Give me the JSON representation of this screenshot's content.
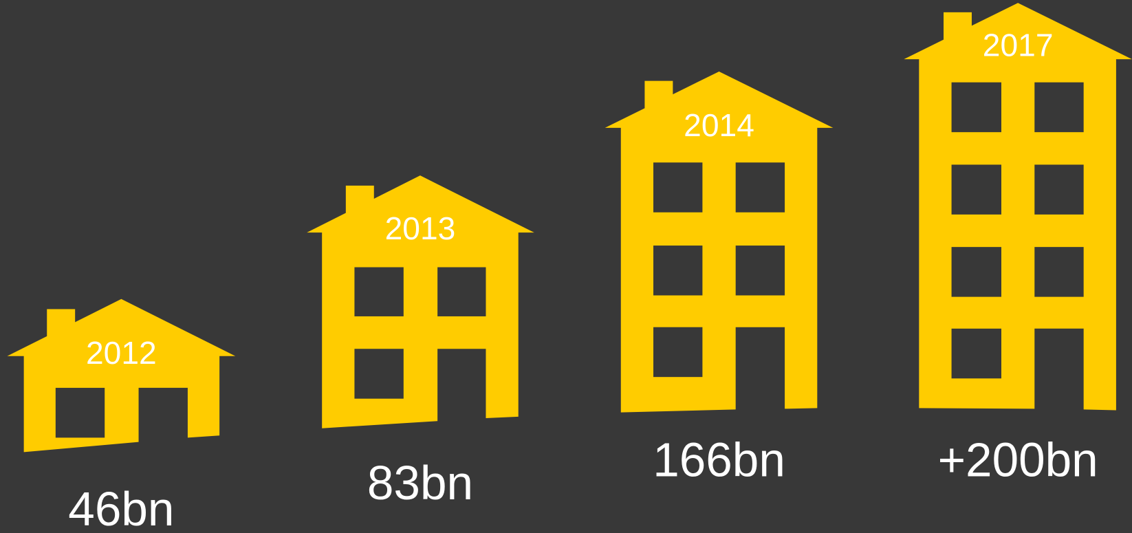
{
  "items": [
    {
      "year": "2012",
      "value": "46bn"
    },
    {
      "year": "2013",
      "value": "83bn"
    },
    {
      "year": "2014",
      "value": "166bn"
    },
    {
      "year": "2017",
      "value": "+200bn"
    }
  ]
}
